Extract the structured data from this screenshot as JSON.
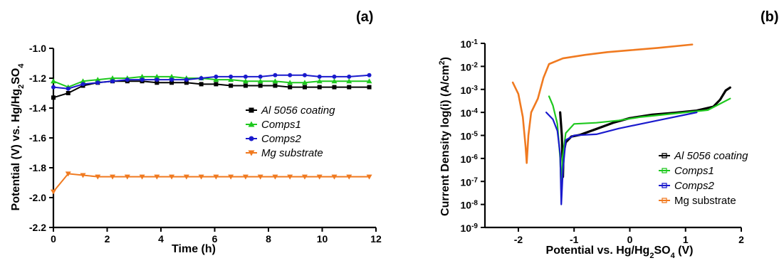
{
  "chart_data": [
    {
      "panel": "(a)",
      "type": "line",
      "xlabel": "Time (h)",
      "ylabel": "Potential (V) vs. Hg/Hg2SO4",
      "xlim": [
        0,
        12
      ],
      "ylim": [
        -2.2,
        -1.0
      ],
      "x_ticks": [
        "0",
        "2",
        "4",
        "6",
        "8",
        "10",
        "12"
      ],
      "y_ticks": [
        "-1.0",
        "-1.2",
        "-1.4",
        "-1.6",
        "-1.8",
        "-2.0",
        "-2.2"
      ],
      "grid": false,
      "legend_position": "center-right",
      "series": [
        {
          "name": "Al 5056 coating",
          "color": "#000000",
          "marker": "square",
          "points": [
            [
              0,
              -1.33
            ],
            [
              0.55,
              -1.3
            ],
            [
              1.1,
              -1.25
            ],
            [
              1.65,
              -1.23
            ],
            [
              2.2,
              -1.22
            ],
            [
              2.75,
              -1.22
            ],
            [
              3.3,
              -1.22
            ],
            [
              3.85,
              -1.23
            ],
            [
              4.4,
              -1.23
            ],
            [
              4.95,
              -1.23
            ],
            [
              5.5,
              -1.24
            ],
            [
              6.05,
              -1.24
            ],
            [
              6.6,
              -1.25
            ],
            [
              7.15,
              -1.25
            ],
            [
              7.7,
              -1.25
            ],
            [
              8.25,
              -1.25
            ],
            [
              8.8,
              -1.26
            ],
            [
              9.35,
              -1.26
            ],
            [
              9.9,
              -1.26
            ],
            [
              10.45,
              -1.26
            ],
            [
              11.0,
              -1.26
            ],
            [
              11.75,
              -1.26
            ]
          ]
        },
        {
          "name": "Comps1",
          "color": "#1ec81e",
          "marker": "triangle-up",
          "points": [
            [
              0,
              -1.22
            ],
            [
              0.55,
              -1.26
            ],
            [
              1.1,
              -1.22
            ],
            [
              1.65,
              -1.21
            ],
            [
              2.2,
              -1.2
            ],
            [
              2.75,
              -1.2
            ],
            [
              3.3,
              -1.19
            ],
            [
              3.85,
              -1.19
            ],
            [
              4.4,
              -1.19
            ],
            [
              4.95,
              -1.2
            ],
            [
              5.5,
              -1.2
            ],
            [
              6.05,
              -1.21
            ],
            [
              6.6,
              -1.21
            ],
            [
              7.15,
              -1.22
            ],
            [
              7.7,
              -1.22
            ],
            [
              8.25,
              -1.22
            ],
            [
              8.8,
              -1.23
            ],
            [
              9.35,
              -1.23
            ],
            [
              9.9,
              -1.22
            ],
            [
              10.45,
              -1.22
            ],
            [
              11.0,
              -1.22
            ],
            [
              11.75,
              -1.22
            ]
          ]
        },
        {
          "name": "Comps2",
          "color": "#1a1acd",
          "marker": "circle",
          "points": [
            [
              0,
              -1.26
            ],
            [
              0.55,
              -1.27
            ],
            [
              1.1,
              -1.24
            ],
            [
              1.65,
              -1.23
            ],
            [
              2.2,
              -1.22
            ],
            [
              2.75,
              -1.21
            ],
            [
              3.3,
              -1.21
            ],
            [
              3.85,
              -1.21
            ],
            [
              4.4,
              -1.21
            ],
            [
              4.95,
              -1.21
            ],
            [
              5.5,
              -1.2
            ],
            [
              6.05,
              -1.19
            ],
            [
              6.6,
              -1.19
            ],
            [
              7.15,
              -1.19
            ],
            [
              7.7,
              -1.19
            ],
            [
              8.25,
              -1.18
            ],
            [
              8.8,
              -1.18
            ],
            [
              9.35,
              -1.18
            ],
            [
              9.9,
              -1.19
            ],
            [
              10.45,
              -1.19
            ],
            [
              11.0,
              -1.19
            ],
            [
              11.75,
              -1.18
            ]
          ]
        },
        {
          "name": "Mg substrate",
          "color": "#f07a20",
          "marker": "triangle-down",
          "points": [
            [
              0,
              -1.96
            ],
            [
              0.55,
              -1.84
            ],
            [
              1.1,
              -1.85
            ],
            [
              1.65,
              -1.86
            ],
            [
              2.2,
              -1.86
            ],
            [
              2.75,
              -1.86
            ],
            [
              3.3,
              -1.86
            ],
            [
              3.85,
              -1.86
            ],
            [
              4.4,
              -1.86
            ],
            [
              4.95,
              -1.86
            ],
            [
              5.5,
              -1.86
            ],
            [
              6.05,
              -1.86
            ],
            [
              6.6,
              -1.86
            ],
            [
              7.15,
              -1.86
            ],
            [
              7.7,
              -1.86
            ],
            [
              8.25,
              -1.86
            ],
            [
              8.8,
              -1.86
            ],
            [
              9.35,
              -1.86
            ],
            [
              9.9,
              -1.86
            ],
            [
              10.45,
              -1.86
            ],
            [
              11.0,
              -1.86
            ],
            [
              11.75,
              -1.86
            ]
          ]
        }
      ]
    },
    {
      "panel": "(b)",
      "type": "line",
      "xlabel": "Potential vs. Hg/Hg2SO4 (V)",
      "ylabel": "Current Density log(i) (A/cm2)",
      "y_scale": "log",
      "xlim": [
        -2.6,
        2.0
      ],
      "ylim_exponent": [
        -9,
        -1
      ],
      "x_ticks": [
        "-2",
        "-1",
        "0",
        "1",
        "2"
      ],
      "y_tick_exponents": [
        "-1",
        "-2",
        "-3",
        "-4",
        "-5",
        "-6",
        "-7",
        "-8",
        "-9"
      ],
      "grid": false,
      "legend_position": "bottom-right",
      "series": [
        {
          "name": "Al 5056 coating",
          "color": "#000000",
          "points_log10": [
            [
              -1.25,
              -4.0
            ],
            [
              -1.22,
              -5.0
            ],
            [
              -1.2,
              -6.8
            ],
            [
              -1.19,
              -5.8
            ],
            [
              -1.15,
              -5.3
            ],
            [
              -1.05,
              -5.05
            ],
            [
              -0.9,
              -4.98
            ],
            [
              -0.6,
              -4.72
            ],
            [
              -0.3,
              -4.45
            ],
            [
              0.0,
              -4.25
            ],
            [
              0.4,
              -4.1
            ],
            [
              0.8,
              -4.02
            ],
            [
              1.2,
              -3.92
            ],
            [
              1.5,
              -3.75
            ],
            [
              1.62,
              -3.45
            ],
            [
              1.72,
              -3.05
            ],
            [
              1.8,
              -2.92
            ]
          ]
        },
        {
          "name": "Comps1",
          "color": "#1ec81e",
          "points_log10": [
            [
              -1.45,
              -3.3
            ],
            [
              -1.38,
              -3.7
            ],
            [
              -1.3,
              -4.5
            ],
            [
              -1.25,
              -6.0
            ],
            [
              -1.23,
              -7.5
            ],
            [
              -1.21,
              -6.0
            ],
            [
              -1.15,
              -4.9
            ],
            [
              -1.0,
              -4.5
            ],
            [
              -0.6,
              -4.45
            ],
            [
              -0.2,
              -4.35
            ],
            [
              0.2,
              -4.2
            ],
            [
              0.6,
              -4.1
            ],
            [
              1.0,
              -4.0
            ],
            [
              1.4,
              -3.9
            ],
            [
              1.8,
              -3.4
            ]
          ]
        },
        {
          "name": "Comps2",
          "color": "#1a1acd",
          "points_log10": [
            [
              -1.5,
              -4.0
            ],
            [
              -1.38,
              -4.3
            ],
            [
              -1.3,
              -4.8
            ],
            [
              -1.25,
              -5.8
            ],
            [
              -1.23,
              -8.0
            ],
            [
              -1.2,
              -6.5
            ],
            [
              -1.15,
              -5.2
            ],
            [
              -1.0,
              -5.0
            ],
            [
              -0.6,
              -4.95
            ],
            [
              -0.2,
              -4.7
            ],
            [
              0.2,
              -4.5
            ],
            [
              0.6,
              -4.3
            ],
            [
              1.0,
              -4.1
            ],
            [
              1.2,
              -4.0
            ]
          ]
        },
        {
          "name": "Mg substrate",
          "color": "#f07a20",
          "points_log10": [
            [
              -2.1,
              -2.7
            ],
            [
              -2.0,
              -3.2
            ],
            [
              -1.92,
              -4.2
            ],
            [
              -1.87,
              -5.5
            ],
            [
              -1.85,
              -6.2
            ],
            [
              -1.82,
              -5.0
            ],
            [
              -1.77,
              -4.0
            ],
            [
              -1.65,
              -3.4
            ],
            [
              -1.55,
              -2.5
            ],
            [
              -1.45,
              -1.9
            ],
            [
              -1.2,
              -1.65
            ],
            [
              -0.8,
              -1.5
            ],
            [
              -0.4,
              -1.38
            ],
            [
              0.0,
              -1.3
            ],
            [
              0.5,
              -1.2
            ],
            [
              1.12,
              -1.05
            ]
          ]
        }
      ]
    }
  ]
}
